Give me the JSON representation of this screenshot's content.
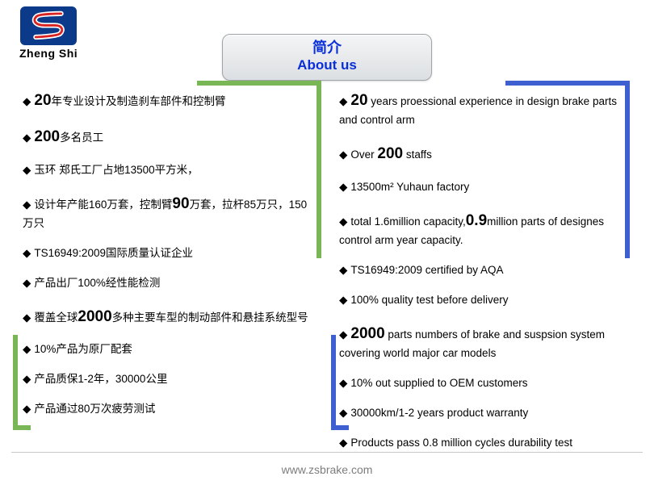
{
  "brand": {
    "name": "Zheng Shi"
  },
  "title": {
    "zh": "简介",
    "en": "About us"
  },
  "colors": {
    "accent_blue": "#0a2fd9",
    "frame_green": "#79b756",
    "frame_blue": "#3d5fcf",
    "logo_bg": "#0b3a8a",
    "footer_text": "#7d7d7d"
  },
  "left_items": [
    {
      "diamond": "◆",
      "prefix": "",
      "big": "20",
      "suffix": "年专业设计及制造刹车部件和控制臂"
    },
    {
      "diamond": "◆",
      "prefix": "",
      "big": "200",
      "suffix": "多名员工"
    },
    {
      "diamond": "◆",
      "prefix": "玉环 郑氏工厂占地13500平方米，",
      "big": "",
      "suffix": ""
    },
    {
      "diamond": "◆",
      "prefix": "设计年产能160万套，控制臂",
      "big": "90",
      "suffix": "万套，拉杆85万只，150万只"
    },
    {
      "diamond": "◆",
      "prefix": "TS16949:2009国际质量认证企业",
      "big": "",
      "suffix": ""
    },
    {
      "diamond": "◆",
      "prefix": "产品出厂100%经性能检测",
      "big": "",
      "suffix": ""
    },
    {
      "diamond": "◆",
      "prefix": "覆盖全球",
      "big": "2000",
      "suffix": "多种主要车型的制动部件和悬挂系统型号"
    },
    {
      "diamond": "◆",
      "prefix": "10%产品为原厂配套",
      "big": "",
      "suffix": ""
    },
    {
      "diamond": "◆",
      "prefix": "产品质保1-2年，30000公里",
      "big": "",
      "suffix": ""
    },
    {
      "diamond": "◆",
      "prefix": "产品通过80万次疲劳测试",
      "big": "",
      "suffix": ""
    }
  ],
  "right_items": [
    {
      "diamond": "◆",
      "prefix": "",
      "big": "20",
      "suffix": " years proessional experience in design brake parts and  control arm"
    },
    {
      "diamond": "◆",
      "prefix": "Over ",
      "big": "200",
      "suffix": " staffs"
    },
    {
      "diamond": "◆",
      "prefix": "13500m² Yuhaun factory",
      "big": "",
      "suffix": ""
    },
    {
      "diamond": "◆",
      "prefix": "total 1.6million capacity,",
      "big": "0.9",
      "suffix": "million parts of designes control arm year capacity."
    },
    {
      "diamond": "◆",
      "prefix": "TS16949:2009 certified by AQA",
      "big": "",
      "suffix": ""
    },
    {
      "diamond": "◆",
      "prefix": "100% quality test before delivery",
      "big": "",
      "suffix": ""
    },
    {
      "diamond": "◆",
      "prefix": "",
      "big": "2000",
      "suffix": " parts numbers of brake and suspsion system covering world major car models"
    },
    {
      "diamond": "◆",
      "prefix": "10% out supplied to OEM customers",
      "big": "",
      "suffix": ""
    },
    {
      "diamond": "◆",
      "prefix": "30000km/1-2 years product warranty",
      "big": "",
      "suffix": ""
    },
    {
      "diamond": "◆",
      "prefix": "Products pass 0.8 million cycles durability test",
      "big": "",
      "suffix": ""
    }
  ],
  "footer": {
    "url": "www.zsbrake.com"
  }
}
